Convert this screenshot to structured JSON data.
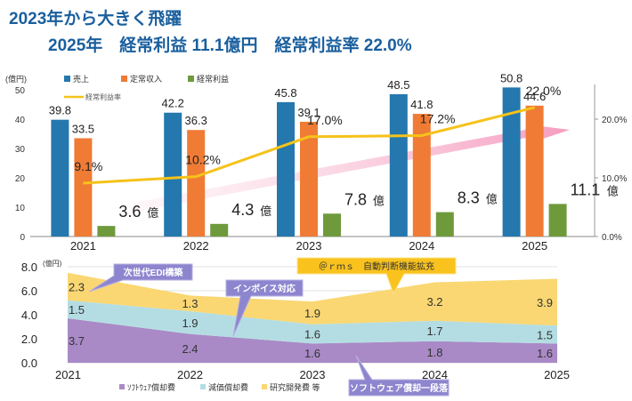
{
  "title": "2023年から大きく飛躍",
  "subtitle": "2025年　経常利益 11.1億円　経常利益率 22.0%",
  "chart_data": [
    {
      "type": "bar",
      "categories": [
        "2021",
        "2022",
        "2023",
        "2024",
        "2025"
      ],
      "ylabel": "(億円)",
      "ylim": [
        0,
        50
      ],
      "yticks": [
        "0",
        "10",
        "20",
        "30",
        "40",
        "50"
      ],
      "series": [
        {
          "name": "売上",
          "color": "#2478ad",
          "values": [
            39.8,
            42.2,
            45.8,
            48.5,
            50.8
          ],
          "labels": [
            "39.8",
            "42.2",
            "45.8",
            "48.5",
            "50.8"
          ]
        },
        {
          "name": "定常収入",
          "color": "#ef7b35",
          "values": [
            33.5,
            36.3,
            39.1,
            41.8,
            44.6
          ],
          "labels": [
            "33.5",
            "36.3",
            "39.1",
            "41.8",
            "44.6"
          ]
        },
        {
          "name": "経常利益",
          "color": "#6e9a3c",
          "values": [
            3.6,
            4.3,
            7.8,
            8.3,
            11.1
          ],
          "labels": [
            "3.6",
            "4.3",
            "7.8",
            "8.3",
            "11.1"
          ],
          "unit": "億"
        }
      ],
      "line": {
        "name": "経常利益率",
        "color": "#f6c21a",
        "values": [
          9.1,
          10.2,
          17.0,
          17.2,
          22.0
        ],
        "labels": [
          "9.1%",
          "10.2%",
          "17.0%",
          "17.2%",
          "22.0%"
        ]
      },
      "y2lim": [
        0,
        25
      ],
      "y2ticks": [
        {
          "v": 0,
          "label": "0.0%"
        },
        {
          "v": 10,
          "label": "10.0%"
        },
        {
          "v": 20,
          "label": "20.0%"
        }
      ]
    },
    {
      "type": "area",
      "categories": [
        "2021",
        "2022",
        "2023",
        "2024",
        "2025"
      ],
      "ylabel": "(億円)",
      "ylim": [
        0,
        8
      ],
      "yticks": [
        "0.0",
        "2.0",
        "4.0",
        "6.0",
        "8.0"
      ],
      "series": [
        {
          "name": "ｿﾌﾄｳｪｱ償却費",
          "color": "#a98ac6",
          "values": [
            3.7,
            2.4,
            1.6,
            1.8,
            1.6
          ],
          "labels": [
            "3.7",
            "2.4",
            "1.6",
            "1.8",
            "1.6"
          ]
        },
        {
          "name": "減価償却費",
          "color": "#b4dde3",
          "values": [
            1.5,
            1.9,
            1.6,
            1.7,
            1.5
          ],
          "labels": [
            "1.5",
            "1.9",
            "1.6",
            "1.7",
            "1.5"
          ]
        },
        {
          "name": "研究開発費 等",
          "color": "#fad772",
          "values": [
            2.3,
            1.3,
            1.9,
            3.2,
            3.9
          ],
          "labels": [
            "2.3",
            "1.3",
            "1.9",
            "3.2",
            "3.9"
          ]
        }
      ],
      "callouts": [
        "次世代EDI構築",
        "インボイス対応",
        "＠ｒｍｓ　自動判断機能拡充",
        "ソフトウェア償却一段落"
      ]
    }
  ]
}
